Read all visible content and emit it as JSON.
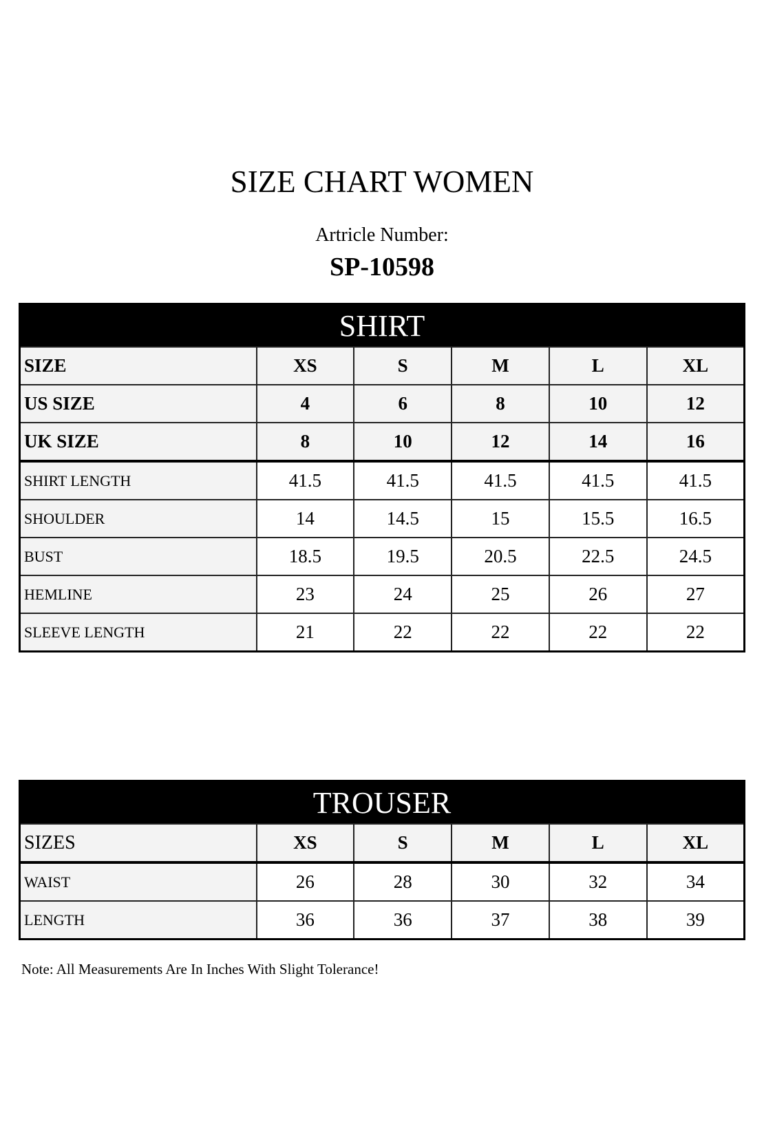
{
  "title": "SIZE CHART WOMEN",
  "article_label": "Artricle Number:",
  "article_number": "SP-10598",
  "shirt": {
    "heading": "SHIRT",
    "header_rows": [
      {
        "label": "SIZE",
        "values": [
          "XS",
          "S",
          "M",
          "L",
          "XL"
        ]
      },
      {
        "label": "US SIZE",
        "values": [
          "4",
          "6",
          "8",
          "10",
          "12"
        ]
      },
      {
        "label": "UK SIZE",
        "values": [
          "8",
          "10",
          "12",
          "14",
          "16"
        ]
      }
    ],
    "rows": [
      {
        "label": "SHIRT LENGTH",
        "values": [
          "41.5",
          "41.5",
          "41.5",
          "41.5",
          "41.5"
        ]
      },
      {
        "label": "SHOULDER",
        "values": [
          "14",
          "14.5",
          "15",
          "15.5",
          "16.5"
        ]
      },
      {
        "label": "BUST",
        "values": [
          "18.5",
          "19.5",
          "20.5",
          "22.5",
          "24.5"
        ]
      },
      {
        "label": "HEMLINE",
        "values": [
          "23",
          "24",
          "25",
          "26",
          "27"
        ]
      },
      {
        "label": "SLEEVE LENGTH",
        "values": [
          "21",
          "22",
          "22",
          "22",
          "22"
        ]
      }
    ]
  },
  "trouser": {
    "heading": "TROUSER",
    "header_row": {
      "label": "SIZES",
      "values": [
        "XS",
        "S",
        "M",
        "L",
        "XL"
      ]
    },
    "rows": [
      {
        "label": "WAIST",
        "values": [
          "26",
          "28",
          "30",
          "32",
          "34"
        ]
      },
      {
        "label": "LENGTH",
        "values": [
          "36",
          "36",
          "37",
          "38",
          "39"
        ]
      }
    ]
  },
  "note": "Note: All Measurements Are In Inches With Slight Tolerance!"
}
